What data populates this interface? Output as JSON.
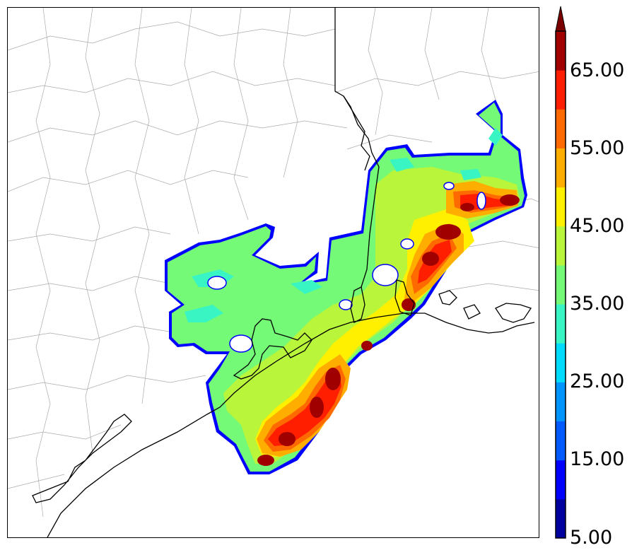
{
  "colorbar": {
    "labels": [
      "5.00",
      "15.00",
      "25.00",
      "35.00",
      "45.00",
      "55.00",
      "65.00"
    ],
    "levels": [
      5,
      10,
      15,
      20,
      25,
      30,
      35,
      40,
      45,
      50,
      55,
      60,
      65,
      70
    ],
    "colors": [
      "#00009f",
      "#0000ff",
      "#005aff",
      "#0094ff",
      "#00dcff",
      "#39f5c4",
      "#74fa76",
      "#b8f53b",
      "#fff000",
      "#ffae00",
      "#ff6a00",
      "#ff1e00",
      "#a00000"
    ],
    "extend_color": "#7a0000"
  },
  "map": {
    "colors": {
      "county_lines": "#aaaaaa",
      "state_line": "#000000",
      "coastline": "#000000",
      "background": "#ffffff"
    }
  }
}
